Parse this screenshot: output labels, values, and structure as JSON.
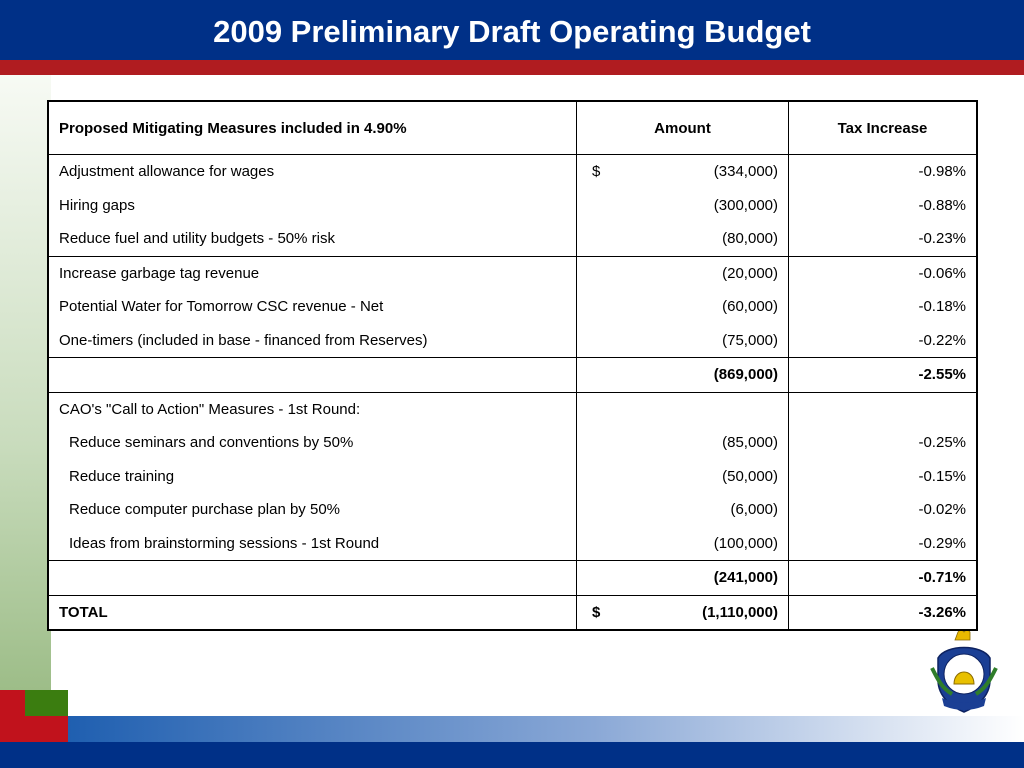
{
  "header": {
    "title": "2009 Preliminary Draft Operating Budget"
  },
  "table": {
    "columns": [
      "Proposed Mitigating Measures included in 4.90%",
      "Amount",
      "Tax Increase"
    ],
    "sections": [
      {
        "rows": [
          {
            "label": "Adjustment allowance for wages",
            "currency": "$",
            "amount": "(334,000)",
            "tax": "-0.98%"
          },
          {
            "label": "Hiring gaps",
            "amount": "(300,000)",
            "tax": "-0.88%"
          },
          {
            "label": "Reduce fuel and utility budgets - 50% risk",
            "amount": "(80,000)",
            "tax": "-0.23%"
          }
        ]
      },
      {
        "rows": [
          {
            "label": "Increase garbage tag revenue",
            "amount": "(20,000)",
            "tax": "-0.06%"
          },
          {
            "label": "Potential Water for Tomorrow CSC revenue - Net",
            "amount": "(60,000)",
            "tax": "-0.18%"
          },
          {
            "label": "One-timers (included in base - financed from Reserves)",
            "amount": "(75,000)",
            "tax": "-0.22%"
          }
        ],
        "subtotal": {
          "amount": "(869,000)",
          "tax": "-2.55%"
        }
      },
      {
        "heading": "CAO's \"Call to Action\" Measures - 1st Round:",
        "rows": [
          {
            "label": "Reduce seminars and conventions by 50%",
            "amount": "(85,000)",
            "tax": "-0.25%"
          },
          {
            "label": "Reduce training",
            "amount": "(50,000)",
            "tax": "-0.15%"
          },
          {
            "label": "Reduce computer purchase plan by 50%",
            "amount": "(6,000)",
            "tax": "-0.02%"
          },
          {
            "label": "Ideas from brainstorming sessions - 1st Round",
            "amount": "(100,000)",
            "tax": "-0.29%"
          }
        ],
        "subtotal": {
          "amount": "(241,000)",
          "tax": "-0.71%"
        }
      }
    ],
    "total": {
      "label": "TOTAL",
      "currency": "$",
      "amount": "(1,110,000)",
      "tax": "-3.26%"
    }
  }
}
